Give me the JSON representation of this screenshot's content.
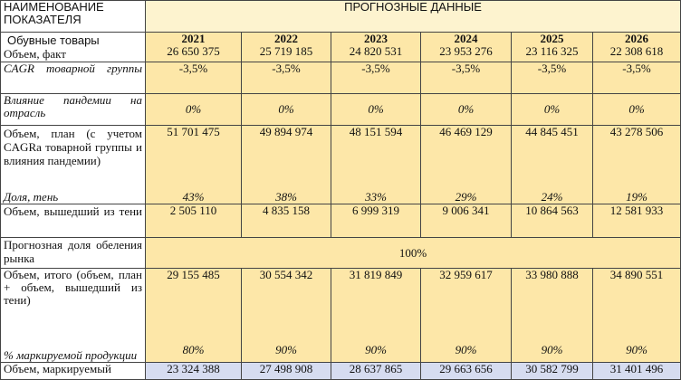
{
  "header": {
    "indicator_label": "НАИМЕНОВАНИЕ ПОКАЗАТЕЛЯ",
    "forecast_label": "ПРОГНОЗНЫЕ ДАННЫЕ",
    "product_label": "Обувные товары",
    "volume_fact_label": "Объем, факт"
  },
  "years": [
    "2021",
    "2022",
    "2023",
    "2024",
    "2025",
    "2026"
  ],
  "volume_fact": [
    "26 650 375",
    "25 719 185",
    "24 820 531",
    "23 953 276",
    "23 116 325",
    "22 308 618"
  ],
  "cagr": {
    "label": "CAGR товарной группы",
    "values": [
      "-3,5%",
      "-3,5%",
      "-3,5%",
      "-3,5%",
      "-3,5%",
      "-3,5%"
    ]
  },
  "pandemic": {
    "label": "Влияние пандемии на отрасль",
    "values": [
      "0%",
      "0%",
      "0%",
      "0%",
      "0%",
      "0%"
    ]
  },
  "plan": {
    "label": "Объем, план (с учетом CAGRa товарной группы и влияния пандемии)",
    "values": [
      "51 701 475",
      "49 894 974",
      "48 151 594",
      "46 469 129",
      "44 845 451",
      "43 278 506"
    ]
  },
  "shadow_share": {
    "label": "Доля, тень",
    "values": [
      "43%",
      "38%",
      "33%",
      "29%",
      "24%",
      "19%"
    ]
  },
  "shadow_out": {
    "label": "Объем, вышедший из тени",
    "values": [
      "2 505 110",
      "4 835 158",
      "6 999 319",
      "9 006 341",
      "10 864 563",
      "12 581 933"
    ]
  },
  "whitening": {
    "label": "Прогнозная доля обеления рынка",
    "value": "100%"
  },
  "total": {
    "label": "Объем, итого (объем, план + объем, вышедший из тени)",
    "values": [
      "29 155 485",
      "30 554 342",
      "31 819 849",
      "32 959 617",
      "33 980 888",
      "34 890 551"
    ]
  },
  "marked_share": {
    "label": "% маркируемой продукции",
    "values": [
      "80%",
      "90%",
      "90%",
      "90%",
      "90%",
      "90%"
    ]
  },
  "marked_volume": {
    "label": "Объем, маркируемый",
    "values": [
      "23 324 388",
      "27 498 908",
      "28 637 865",
      "29 663 656",
      "30 582 799",
      "31 401 496"
    ]
  },
  "colors": {
    "yellow": "#fde7a8",
    "light_yellow": "#fdf3cf",
    "blue": "#d6dcf0",
    "border": "#444444"
  }
}
